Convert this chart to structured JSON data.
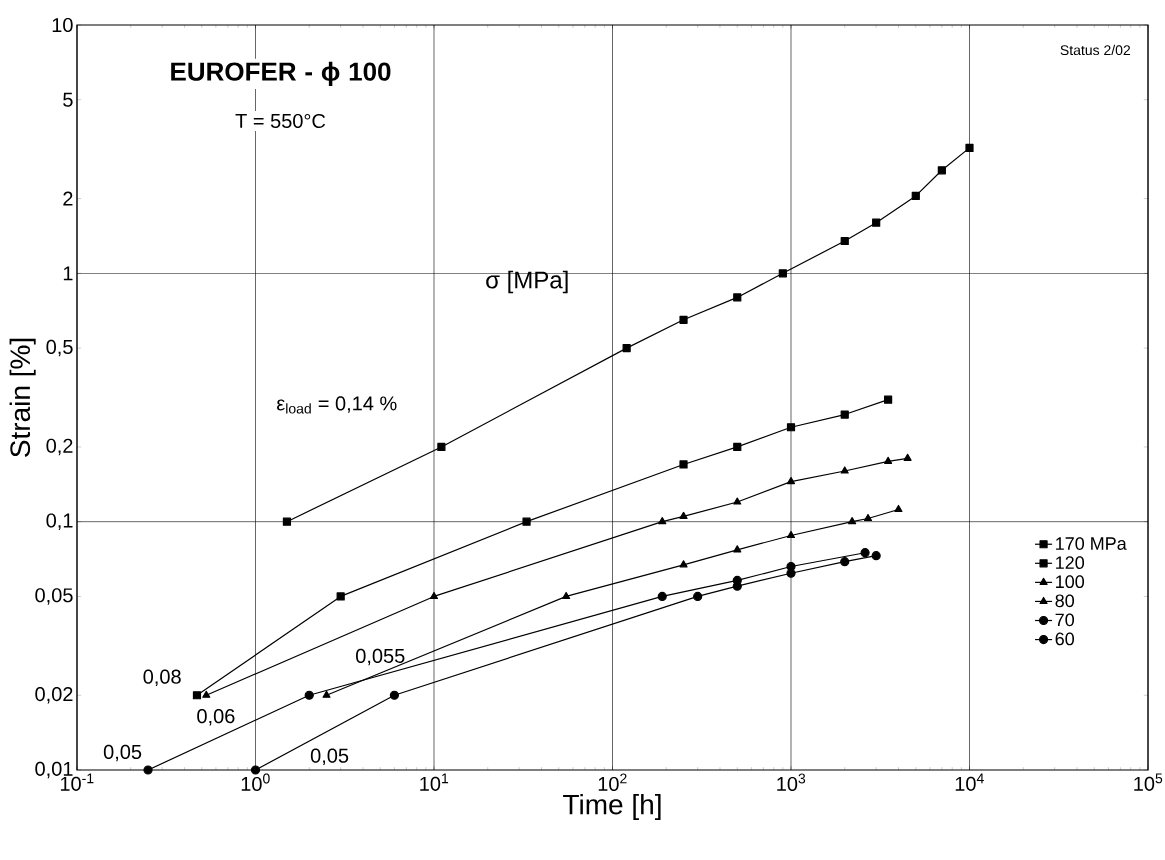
{
  "chart_data": {
    "type": "line",
    "title": "EUROFER - ϕ 100",
    "subtitle": "T = 550°C",
    "xlabel": "Time [h]",
    "ylabel": "Strain [%]",
    "log": "xy",
    "grid": "x",
    "legend": "bottom right",
    "line_style": "solid",
    "xlim": [
      0.1,
      100000
    ],
    "ylim": [
      0.01,
      10
    ],
    "xticks": [
      {
        "value": 0.1,
        "label": "10$^{-1}$"
      },
      {
        "value": 1,
        "label": "10$^{0}$"
      },
      {
        "value": 10,
        "label": "10$^{1}$"
      },
      {
        "value": 100,
        "label": "10$^{2}$"
      },
      {
        "value": 1000,
        "label": "10$^{3}$"
      },
      {
        "value": 10000,
        "label": "10$^{4}$"
      },
      {
        "value": 100000,
        "label": "10$^{5}$"
      }
    ],
    "yticks": [
      {
        "value": 0.01,
        "label": "0,01"
      },
      {
        "value": 0.02,
        "label": "0,02"
      },
      {
        "value": 0.05,
        "label": "0,05"
      },
      {
        "value": 0.1,
        "label": "0,1"
      },
      {
        "value": 0.2,
        "label": "0,2"
      },
      {
        "value": 0.5,
        "label": "0,5"
      },
      {
        "value": 1,
        "label": "1"
      },
      {
        "value": 2,
        "label": "2"
      },
      {
        "value": 5,
        "label": "5"
      },
      {
        "value": 10,
        "label": "10"
      }
    ],
    "ref_lines": [
      {
        "axis": "y",
        "value": 0.1
      },
      {
        "axis": "y",
        "value": 1
      }
    ],
    "series": [
      {
        "name": "170 MPa",
        "color": "#000000",
        "marker": "square",
        "x": [
          1.5,
          11,
          120,
          250,
          500,
          900,
          2000,
          3000,
          5000,
          7000,
          10000
        ],
        "values": [
          0.1,
          0.2,
          0.5,
          0.65,
          0.8,
          1.0,
          1.35,
          1.6,
          2.05,
          2.6,
          3.2
        ]
      },
      {
        "name": "120",
        "color": "#000000",
        "marker": "square",
        "x": [
          0.47,
          3,
          33,
          250,
          500,
          1000,
          2000,
          3500
        ],
        "values": [
          0.02,
          0.05,
          0.1,
          0.17,
          0.2,
          0.24,
          0.27,
          0.31
        ]
      },
      {
        "name": "100",
        "color": "#000000",
        "marker": "triangle",
        "x": [
          0.53,
          10,
          190,
          250,
          500,
          1000,
          2000,
          3500,
          4500
        ],
        "values": [
          0.02,
          0.05,
          0.1,
          0.105,
          0.12,
          0.145,
          0.16,
          0.175,
          0.18
        ]
      },
      {
        "name": "80",
        "color": "#000000",
        "marker": "triangle",
        "x": [
          2.5,
          55,
          250,
          500,
          1000,
          2200,
          2700,
          4000
        ],
        "values": [
          0.02,
          0.05,
          0.067,
          0.077,
          0.088,
          0.1,
          0.103,
          0.112
        ]
      },
      {
        "name": "70",
        "color": "#000000",
        "marker": "circle",
        "x": [
          1,
          6,
          300,
          500,
          1000,
          2000,
          3000
        ],
        "values": [
          0.01,
          0.02,
          0.05,
          0.055,
          0.062,
          0.069,
          0.073
        ]
      },
      {
        "name": "60",
        "color": "#000000",
        "marker": "circle",
        "x": [
          0.25,
          2,
          190,
          500,
          1000,
          2600
        ],
        "values": [
          0.01,
          0.02,
          0.05,
          0.058,
          0.066,
          0.075
        ]
      }
    ],
    "annotations": [
      "Status 2/02",
      "σ [MPa]",
      "ε$_{load}$ = 0,14 %",
      "0,08",
      "0,06",
      "0,055",
      "0,05",
      "0,05"
    ]
  }
}
